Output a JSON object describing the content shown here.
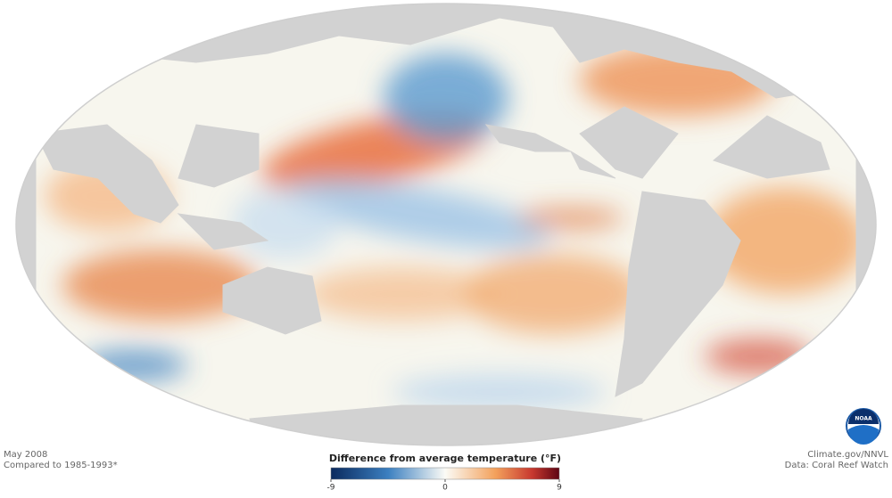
{
  "map": {
    "date": "May 2008",
    "baseline": "Compared to 1985-1993*",
    "credit": "Climate.gov/NNVL",
    "source": "Data: Coral Reef Watch",
    "logo": "NOAA",
    "colorbar": {
      "title": "Difference from average temperature (°F)",
      "lim": [
        -9,
        9
      ],
      "ticks": [
        -9,
        0,
        9
      ]
    }
  }
}
